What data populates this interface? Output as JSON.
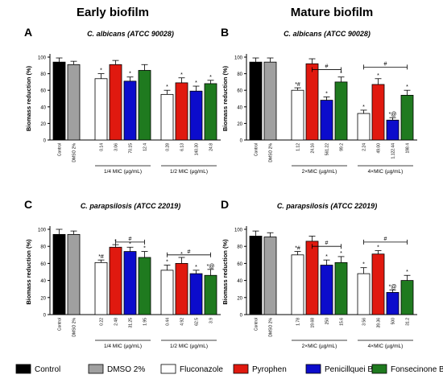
{
  "headers": {
    "left": "Early biofilm",
    "right": "Mature biofilm"
  },
  "ylabel": "Biomass reduction (%)",
  "legend": [
    {
      "name": "Control",
      "color": "#000000"
    },
    {
      "name": "DMSO 2%",
      "color": "#a0a0a0"
    },
    {
      "name": "Fluconazole",
      "color": "#ffffff"
    },
    {
      "name": "Pyrophen",
      "color": "#e0190f"
    },
    {
      "name": "Penicillquei B",
      "color": "#0c0ccc"
    },
    {
      "name": "Fonsecinone B",
      "color": "#1f7a1f"
    }
  ],
  "chart_data": [
    {
      "type": "bar",
      "panel": "A",
      "title": "C. albicans (ATCC 90028)",
      "ylabel": "Biomass reduction (%)",
      "ylim": [
        0,
        100
      ],
      "yticks": [
        0,
        20,
        40,
        60,
        80,
        100
      ],
      "groups": [
        {
          "label": "",
          "bars": [
            {
              "tick": "Control",
              "value": 94,
              "error": 5,
              "color": "#000000",
              "annotation": ""
            },
            {
              "tick": "DMSO 2%",
              "value": 91,
              "error": 4,
              "color": "#a0a0a0",
              "annotation": ""
            }
          ]
        },
        {
          "label": "1/4 MIC (µg/mL)",
          "bars": [
            {
              "tick": "0.14",
              "value": 74,
              "error": 6,
              "color": "#ffffff",
              "annotation": "*"
            },
            {
              "tick": "3.06",
              "value": 91,
              "error": 5,
              "color": "#e0190f",
              "annotation": ""
            },
            {
              "tick": "70.15",
              "value": 71,
              "error": 5,
              "color": "#0c0ccc",
              "annotation": "*"
            },
            {
              "tick": "12.4",
              "value": 84,
              "error": 7,
              "color": "#1f7a1f",
              "annotation": ""
            }
          ]
        },
        {
          "label": "1/2 MIC (µg/mL)",
          "bars": [
            {
              "tick": "0.28",
              "value": 55,
              "error": 5,
              "color": "#ffffff",
              "annotation": "*"
            },
            {
              "tick": "6.13",
              "value": 69,
              "error": 6,
              "color": "#e0190f",
              "annotation": "*"
            },
            {
              "tick": "140.30",
              "value": 59,
              "error": 6,
              "color": "#0c0ccc",
              "annotation": "*"
            },
            {
              "tick": "24.8",
              "value": 68,
              "error": 4,
              "color": "#1f7a1f",
              "annotation": "*"
            }
          ]
        }
      ],
      "brackets": []
    },
    {
      "type": "bar",
      "panel": "B",
      "title": "C. albicans (ATCC 90028)",
      "ylabel": "Biomass reduction (%)",
      "ylim": [
        0,
        100
      ],
      "yticks": [
        0,
        20,
        40,
        60,
        80,
        100
      ],
      "groups": [
        {
          "label": "",
          "bars": [
            {
              "tick": "Control",
              "value": 94,
              "error": 5,
              "color": "#000000",
              "annotation": ""
            },
            {
              "tick": "DMSO 2%",
              "value": 94,
              "error": 5,
              "color": "#a0a0a0",
              "annotation": ""
            }
          ]
        },
        {
          "label": "2×MIC (µg/mL)",
          "bars": [
            {
              "tick": "1.12",
              "value": 60,
              "error": 3,
              "color": "#ffffff",
              "annotation": "*#"
            },
            {
              "tick": "24.16",
              "value": 92,
              "error": 6,
              "color": "#e0190f",
              "annotation": ""
            },
            {
              "tick": "561.22",
              "value": 48,
              "error": 4,
              "color": "#0c0ccc",
              "annotation": "*"
            },
            {
              "tick": "99.2",
              "value": 70,
              "error": 6,
              "color": "#1f7a1f",
              "annotation": "*"
            }
          ]
        },
        {
          "label": "4×MIC (µg/mL)",
          "bars": [
            {
              "tick": "2.24",
              "value": 32,
              "error": 4,
              "color": "#ffffff",
              "annotation": "*"
            },
            {
              "tick": "49.00",
              "value": 67,
              "error": 7,
              "color": "#e0190f",
              "annotation": "*"
            },
            {
              "tick": "1,122.44",
              "value": 24,
              "error": 3,
              "color": "#0c0ccc",
              "annotation": "*@"
            },
            {
              "tick": "198.4",
              "value": 54,
              "error": 6,
              "color": "#1f7a1f",
              "annotation": "*"
            }
          ]
        }
      ],
      "brackets": [
        {
          "from_group": 1,
          "from_bar": 1,
          "to_group": 1,
          "to_bar": 3,
          "y": 85,
          "label": "#"
        },
        {
          "from_group": 2,
          "from_bar": 0,
          "to_group": 2,
          "to_bar": 3,
          "y": 88,
          "label": "#"
        }
      ]
    },
    {
      "type": "bar",
      "panel": "C",
      "title": "C. parapsilosis (ATCC 22019)",
      "ylabel": "Biomass reduction (%)",
      "ylim": [
        0,
        100
      ],
      "yticks": [
        0,
        20,
        40,
        60,
        80,
        100
      ],
      "groups": [
        {
          "label": "",
          "bars": [
            {
              "tick": "Control",
              "value": 94,
              "error": 6,
              "color": "#000000",
              "annotation": ""
            },
            {
              "tick": "DMSO 2%",
              "value": 94,
              "error": 4,
              "color": "#a0a0a0",
              "annotation": ""
            }
          ]
        },
        {
          "label": "1/4 MIC (µg/mL)",
          "bars": [
            {
              "tick": "0.22",
              "value": 61,
              "error": 3,
              "color": "#ffffff",
              "annotation": "*#"
            },
            {
              "tick": "2.48",
              "value": 79,
              "error": 3,
              "color": "#e0190f",
              "annotation": "*"
            },
            {
              "tick": "31.25",
              "value": 74,
              "error": 5,
              "color": "#0c0ccc",
              "annotation": "*"
            },
            {
              "tick": "1.95",
              "value": 67,
              "error": 7,
              "color": "#1f7a1f",
              "annotation": "*"
            }
          ]
        },
        {
          "label": "1/2 MIC (µg/mL)",
          "bars": [
            {
              "tick": "0.44",
              "value": 52,
              "error": 6,
              "color": "#ffffff",
              "annotation": "*"
            },
            {
              "tick": "4.92",
              "value": 60,
              "error": 7,
              "color": "#e0190f",
              "annotation": "*"
            },
            {
              "tick": "62.5",
              "value": 48,
              "error": 4,
              "color": "#0c0ccc",
              "annotation": "*"
            },
            {
              "tick": "3.9",
              "value": 46,
              "error": 7,
              "color": "#1f7a1f",
              "annotation": "*@"
            }
          ]
        }
      ],
      "brackets": [
        {
          "from_group": 1,
          "from_bar": 1,
          "to_group": 1,
          "to_bar": 3,
          "y": 85,
          "label": "#"
        },
        {
          "from_group": 2,
          "from_bar": 0,
          "to_group": 2,
          "to_bar": 3,
          "y": 70,
          "label": "#"
        }
      ]
    },
    {
      "type": "bar",
      "panel": "D",
      "title": "C. parapsilosis (ATCC 22019)",
      "ylabel": "Biomass reduction (%)",
      "ylim": [
        0,
        100
      ],
      "yticks": [
        0,
        20,
        40,
        60,
        80,
        100
      ],
      "groups": [
        {
          "label": "",
          "bars": [
            {
              "tick": "Control",
              "value": 92,
              "error": 6,
              "color": "#000000",
              "annotation": ""
            },
            {
              "tick": "DMSO 2%",
              "value": 91,
              "error": 5,
              "color": "#a0a0a0",
              "annotation": ""
            }
          ]
        },
        {
          "label": "2×MIC (µg/mL)",
          "bars": [
            {
              "tick": "1.78",
              "value": 70,
              "error": 4,
              "color": "#ffffff",
              "annotation": "*#"
            },
            {
              "tick": "19.68",
              "value": 86,
              "error": 6,
              "color": "#e0190f",
              "annotation": ""
            },
            {
              "tick": "250",
              "value": 58,
              "error": 6,
              "color": "#0c0ccc",
              "annotation": "*"
            },
            {
              "tick": "15.6",
              "value": 61,
              "error": 7,
              "color": "#1f7a1f",
              "annotation": "*"
            }
          ]
        },
        {
          "label": "4×MIC (µg/mL)",
          "bars": [
            {
              "tick": "3.56",
              "value": 48,
              "error": 7,
              "color": "#ffffff",
              "annotation": "*"
            },
            {
              "tick": "39.36",
              "value": 71,
              "error": 4,
              "color": "#e0190f",
              "annotation": "*"
            },
            {
              "tick": "500",
              "value": 26,
              "error": 3,
              "color": "#0c0ccc",
              "annotation": "*@"
            },
            {
              "tick": "31.2",
              "value": 40,
              "error": 6,
              "color": "#1f7a1f",
              "annotation": "*"
            }
          ]
        }
      ],
      "brackets": [
        {
          "from_group": 1,
          "from_bar": 1,
          "to_group": 1,
          "to_bar": 3,
          "y": 80,
          "label": "#"
        },
        {
          "from_group": 2,
          "from_bar": 0,
          "to_group": 2,
          "to_bar": 3,
          "y": 85,
          "label": "#"
        }
      ]
    }
  ]
}
